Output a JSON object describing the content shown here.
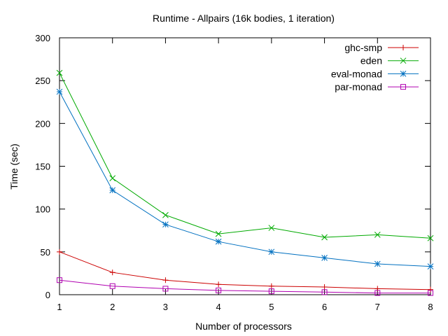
{
  "chart_data": {
    "type": "line",
    "title": "Runtime - Allpairs (16k bodies, 1 iteration)",
    "xlabel": "Number of processors",
    "ylabel": "Time (sec)",
    "xlim": [
      1,
      8
    ],
    "ylim": [
      0,
      300
    ],
    "x_ticks": [
      1,
      2,
      3,
      4,
      5,
      6,
      7,
      8
    ],
    "y_ticks": [
      0,
      50,
      100,
      150,
      200,
      250,
      300
    ],
    "grid": false,
    "legend_position": "top-right",
    "x": [
      1,
      2,
      3,
      4,
      5,
      6,
      7,
      8
    ],
    "series": [
      {
        "name": "ghc-smp",
        "color": "#cc0000",
        "marker": "plus",
        "values": [
          50,
          26,
          17,
          12,
          10,
          9,
          7,
          6
        ]
      },
      {
        "name": "eden",
        "color": "#00aa00",
        "marker": "cross",
        "values": [
          259,
          136,
          93,
          71,
          78,
          67,
          70,
          66
        ]
      },
      {
        "name": "eval-monad",
        "color": "#0070c0",
        "marker": "star",
        "values": [
          237,
          122,
          82,
          62,
          50,
          43,
          36,
          33
        ]
      },
      {
        "name": "par-monad",
        "color": "#b000b0",
        "marker": "square",
        "values": [
          17,
          10,
          7,
          5,
          4,
          3,
          2,
          2
        ]
      }
    ]
  }
}
